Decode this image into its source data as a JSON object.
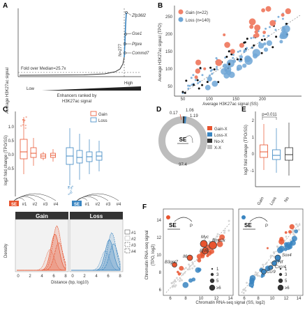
{
  "panels": {
    "A": {
      "label": "A",
      "ylabel": "Average H3K27ac signal",
      "xlabel_line1": "Enhancers ranked by",
      "xlabel_line2": "H3K27ac signal",
      "x_low": "Low",
      "x_high": "High",
      "fold_label": "Fold over Median=25.7x",
      "n_label": "N=277",
      "genes": [
        "Zfp36l2",
        "Gse1",
        "Ptpre",
        "Commd7"
      ]
    },
    "B": {
      "label": "B",
      "ylabel": "Average H3K27ac signal (TPO)",
      "xlabel": "Average H3K27ac signal (SS)",
      "legend": [
        {
          "name": "Gain (n=22)",
          "color": "#f0826a"
        },
        {
          "name": "Loss (n=140)",
          "color": "#6ea6d6"
        }
      ],
      "x_ticks": [
        "50",
        "100",
        "150",
        "200"
      ],
      "y_ticks": [
        "50",
        "100",
        "150",
        "200",
        "250"
      ]
    },
    "C": {
      "label": "C",
      "ylabel": "log2 fold change (TPO/SS)",
      "y_ticks": [
        "1.0",
        "0.5",
        "0.0",
        "-0.5"
      ],
      "legend": [
        {
          "name": "Gain",
          "color": "#e8542f"
        },
        {
          "name": "Loss",
          "color": "#3a85c1"
        }
      ],
      "se": "SE",
      "enh": [
        "#1",
        "#2",
        "#3",
        "#4"
      ],
      "density_ylabel": "Density",
      "xlabel": "Distance (bp, log10)",
      "x_ticks": [
        "0",
        "2",
        "4",
        "6",
        "8"
      ],
      "facets": [
        "Gain",
        "Loss"
      ],
      "density_legend": [
        "#1",
        "#2",
        "#3",
        "#4"
      ]
    },
    "D": {
      "label": "D",
      "se": "SE",
      "values": [
        "0.17",
        "1.06",
        "1.19",
        "97.4"
      ],
      "legend": [
        {
          "name": "Gain-X",
          "color": "#e8542f"
        },
        {
          "name": "Loss-X",
          "color": "#3a85c1"
        },
        {
          "name": "No-X",
          "color": "#333333"
        },
        {
          "name": "X-X",
          "color": "#bdbdbd"
        }
      ]
    },
    "E": {
      "label": "E",
      "ylabel": "log2 fold change (TPO/SS)",
      "pval": "p=0.011",
      "y_ticks": [
        "2",
        "1",
        "0",
        "-1"
      ],
      "categories": [
        "Gain",
        "Loss",
        "No"
      ]
    },
    "F": {
      "label": "F",
      "ylabel_line1": "Chromatin RNA-seq signal",
      "ylabel_line2": "(TPO, log2)",
      "xlabel": "Chromatin RNA-seq signal (SS, log2)",
      "se": "SE",
      "p": "P",
      "ticks": [
        "6",
        "8",
        "10",
        "12",
        "14"
      ],
      "genes_left": [
        "Myc",
        "Bmp2k",
        "Ehf6",
        "Il6",
        "B3gnt7"
      ],
      "genes_right": [
        "Sox4",
        "Hif",
        "Cxcr4",
        "Ccr9"
      ],
      "size_legend": [
        "1",
        "3",
        "5",
        "≥6"
      ]
    }
  }
}
